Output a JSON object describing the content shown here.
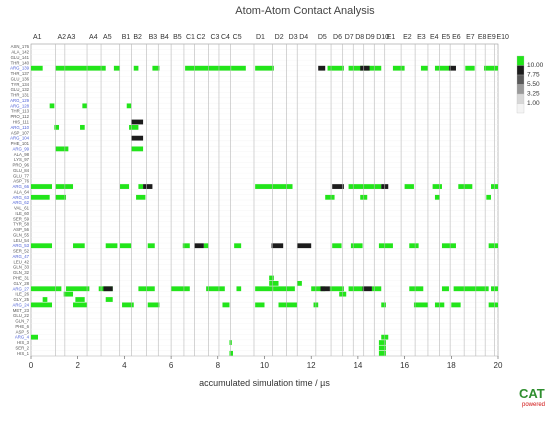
{
  "chart_data": {
    "type": "heatmap",
    "title": "Atom-Atom Contact Analysis",
    "xlabel": "accumulated simulation time / µs",
    "xlim": [
      0,
      20
    ],
    "x_ticks": [
      0,
      2,
      4,
      6,
      8,
      10,
      12,
      14,
      16,
      18,
      20
    ],
    "segments": [
      {
        "label": "A1",
        "start": 0.0
      },
      {
        "label": "A2",
        "start": 1.05
      },
      {
        "label": "A3",
        "start": 1.45
      },
      {
        "label": "A4",
        "start": 2.4
      },
      {
        "label": "A5",
        "start": 3.0
      },
      {
        "label": "B1",
        "start": 3.8
      },
      {
        "label": "B2",
        "start": 4.3
      },
      {
        "label": "B3",
        "start": 4.95
      },
      {
        "label": "B4",
        "start": 5.45
      },
      {
        "label": "B5",
        "start": 6.0
      },
      {
        "label": "C1",
        "start": 6.55
      },
      {
        "label": "C2",
        "start": 7.0
      },
      {
        "label": "C3",
        "start": 7.6
      },
      {
        "label": "C4",
        "start": 8.05
      },
      {
        "label": "C5",
        "start": 8.55
      },
      {
        "label": "D1",
        "start": 9.55
      },
      {
        "label": "D2",
        "start": 10.35
      },
      {
        "label": "D3",
        "start": 10.95
      },
      {
        "label": "D4",
        "start": 11.4
      },
      {
        "label": "D5",
        "start": 12.2
      },
      {
        "label": "D6",
        "start": 12.85
      },
      {
        "label": "D7",
        "start": 13.35
      },
      {
        "label": "D8",
        "start": 13.8
      },
      {
        "label": "D9",
        "start": 14.25
      },
      {
        "label": "D10",
        "start": 14.7
      },
      {
        "label": "E1",
        "start": 15.15
      },
      {
        "label": "E2",
        "start": 15.85
      },
      {
        "label": "E3",
        "start": 16.45
      },
      {
        "label": "E4",
        "start": 17.0
      },
      {
        "label": "E5",
        "start": 17.5
      },
      {
        "label": "E6",
        "start": 17.95
      },
      {
        "label": "E7",
        "start": 18.55
      },
      {
        "label": "E8",
        "start": 19.05
      },
      {
        "label": "E9",
        "start": 19.45
      },
      {
        "label": "E10",
        "start": 19.85
      }
    ],
    "residues": [
      {
        "name": "ASN_176",
        "arg": false
      },
      {
        "name": "ALA_142",
        "arg": false
      },
      {
        "name": "GLU_141",
        "arg": false
      },
      {
        "name": "THR_140",
        "arg": false
      },
      {
        "name": "ARG_139",
        "arg": true
      },
      {
        "name": "THR_137",
        "arg": false
      },
      {
        "name": "GLU_136",
        "arg": false
      },
      {
        "name": "TYR_134",
        "arg": false
      },
      {
        "name": "GLU_132",
        "arg": false
      },
      {
        "name": "THR_131",
        "arg": false
      },
      {
        "name": "ARG_129",
        "arg": true
      },
      {
        "name": "ARG_128",
        "arg": true
      },
      {
        "name": "THR_113",
        "arg": false
      },
      {
        "name": "PRO_112",
        "arg": false
      },
      {
        "name": "HIS_111",
        "arg": false
      },
      {
        "name": "ARG_110",
        "arg": true
      },
      {
        "name": "ASP_107",
        "arg": false
      },
      {
        "name": "ARG_104",
        "arg": true
      },
      {
        "name": "PHE_101",
        "arg": false
      },
      {
        "name": "ARG_99",
        "arg": true
      },
      {
        "name": "ALA_98",
        "arg": false
      },
      {
        "name": "LYS_97",
        "arg": false
      },
      {
        "name": "PRO_96",
        "arg": false
      },
      {
        "name": "GLU_84",
        "arg": false
      },
      {
        "name": "GLU_77",
        "arg": false
      },
      {
        "name": "ASP_76",
        "arg": false
      },
      {
        "name": "ARG_66",
        "arg": true
      },
      {
        "name": "ALA_64",
        "arg": false
      },
      {
        "name": "ARG_63",
        "arg": true
      },
      {
        "name": "ARG_62",
        "arg": true
      },
      {
        "name": "VAL_61",
        "arg": false
      },
      {
        "name": "ILE_60",
        "arg": false
      },
      {
        "name": "SER_59",
        "arg": false
      },
      {
        "name": "TYR_58",
        "arg": false
      },
      {
        "name": "ASP_56",
        "arg": false
      },
      {
        "name": "GLN_55",
        "arg": false
      },
      {
        "name": "LEU_54",
        "arg": false
      },
      {
        "name": "ARG_53",
        "arg": true
      },
      {
        "name": "SER_52",
        "arg": false
      },
      {
        "name": "ARG_47",
        "arg": true
      },
      {
        "name": "LEU_42",
        "arg": false
      },
      {
        "name": "GLN_33",
        "arg": false
      },
      {
        "name": "GLN_32",
        "arg": false
      },
      {
        "name": "PHE_31",
        "arg": false
      },
      {
        "name": "GLY_28",
        "arg": false
      },
      {
        "name": "ARG_27",
        "arg": true
      },
      {
        "name": "ILE_26",
        "arg": false
      },
      {
        "name": "GLY_25",
        "arg": false
      },
      {
        "name": "ARG_24",
        "arg": true
      },
      {
        "name": "MET_23",
        "arg": false
      },
      {
        "name": "GLU_22",
        "arg": false
      },
      {
        "name": "GLN_7",
        "arg": false
      },
      {
        "name": "PHE_6",
        "arg": false
      },
      {
        "name": "ASP_5",
        "arg": false
      },
      {
        "name": "ARG_4",
        "arg": true
      },
      {
        "name": "HIS_3",
        "arg": false
      },
      {
        "name": "SER_2",
        "arg": false
      },
      {
        "name": "HIS_1",
        "arg": false
      }
    ],
    "color_levels": [
      {
        "label": "10.00",
        "color": "#22e51a"
      },
      {
        "label": "7.75",
        "color": "#1c1c1c"
      },
      {
        "label": "5.50",
        "color": "#5a5a5a"
      },
      {
        "label": "3.25",
        "color": "#9a9a9a"
      },
      {
        "label": "1.00",
        "color": "#d8d8d8"
      },
      {
        "label": "",
        "color": "#f4f4f4"
      }
    ],
    "contacts": [
      {
        "residue": "ARG_139",
        "level": "10.00",
        "spans": [
          [
            0.0,
            0.5
          ],
          [
            1.05,
            3.2
          ],
          [
            3.55,
            3.8
          ],
          [
            4.4,
            4.6
          ],
          [
            5.2,
            5.5
          ],
          [
            6.6,
            7.6
          ],
          [
            7.6,
            8.6
          ],
          [
            8.6,
            9.2
          ],
          [
            9.6,
            10.4
          ],
          [
            12.7,
            13.4
          ],
          [
            13.6,
            14.3
          ],
          [
            14.3,
            15.0
          ],
          [
            15.5,
            16.0
          ],
          [
            16.7,
            17.0
          ],
          [
            17.3,
            18.0
          ],
          [
            18.6,
            19.0
          ],
          [
            19.4,
            20.0
          ]
        ]
      },
      {
        "residue": "ARG_139",
        "level": "7.75",
        "spans": [
          [
            12.3,
            12.6
          ],
          [
            14.1,
            14.5
          ],
          [
            17.9,
            18.2
          ]
        ]
      },
      {
        "residue": "ARG_128",
        "level": "10.00",
        "spans": [
          [
            0.8,
            1.0
          ],
          [
            2.2,
            2.4
          ],
          [
            4.1,
            4.3
          ]
        ]
      },
      {
        "residue": "HIS_111",
        "level": "7.75",
        "spans": [
          [
            4.3,
            4.8
          ]
        ]
      },
      {
        "residue": "ARG_110",
        "level": "10.00",
        "spans": [
          [
            1.0,
            1.2
          ],
          [
            2.1,
            2.3
          ],
          [
            4.2,
            4.6
          ]
        ]
      },
      {
        "residue": "ARG_104",
        "level": "7.75",
        "spans": [
          [
            4.3,
            4.8
          ]
        ]
      },
      {
        "residue": "ARG_99",
        "level": "10.00",
        "spans": [
          [
            1.05,
            1.6
          ],
          [
            4.3,
            4.8
          ]
        ]
      },
      {
        "residue": "ARG_66",
        "level": "10.00",
        "spans": [
          [
            0.0,
            0.9
          ],
          [
            1.05,
            1.8
          ],
          [
            3.8,
            4.2
          ],
          [
            4.6,
            4.8
          ],
          [
            9.6,
            11.2
          ],
          [
            13.6,
            15.0
          ],
          [
            16.0,
            16.4
          ],
          [
            17.2,
            17.6
          ],
          [
            18.3,
            18.9
          ],
          [
            19.7,
            20.0
          ]
        ]
      },
      {
        "residue": "ARG_66",
        "level": "7.75",
        "spans": [
          [
            4.8,
            5.2
          ],
          [
            12.9,
            13.4
          ],
          [
            15.0,
            15.3
          ]
        ]
      },
      {
        "residue": "ARG_63",
        "level": "10.00",
        "spans": [
          [
            0.0,
            0.8
          ],
          [
            1.05,
            1.5
          ],
          [
            4.5,
            4.9
          ],
          [
            12.6,
            13.0
          ],
          [
            14.1,
            14.4
          ],
          [
            17.3,
            17.5
          ],
          [
            19.5,
            19.7
          ]
        ]
      },
      {
        "residue": "ARG_53",
        "level": "10.00",
        "spans": [
          [
            0.0,
            0.9
          ],
          [
            1.8,
            2.3
          ],
          [
            3.2,
            3.7
          ],
          [
            3.8,
            4.3
          ],
          [
            5.0,
            5.3
          ],
          [
            6.5,
            6.8
          ],
          [
            7.4,
            7.6
          ],
          [
            8.7,
            9.0
          ],
          [
            12.9,
            13.3
          ],
          [
            13.7,
            14.2
          ],
          [
            14.9,
            15.5
          ],
          [
            16.2,
            16.6
          ],
          [
            17.6,
            18.2
          ],
          [
            19.6,
            20.0
          ]
        ]
      },
      {
        "residue": "ARG_53",
        "level": "7.75",
        "spans": [
          [
            7.0,
            7.4
          ],
          [
            10.3,
            10.8
          ],
          [
            11.4,
            12.0
          ]
        ]
      },
      {
        "residue": "PHE_31",
        "level": "10.00",
        "spans": [
          [
            10.2,
            10.4
          ]
        ]
      },
      {
        "residue": "GLY_28",
        "level": "10.00",
        "spans": [
          [
            10.2,
            10.6
          ],
          [
            11.4,
            11.6
          ]
        ]
      },
      {
        "residue": "ARG_27",
        "level": "10.00",
        "spans": [
          [
            0.0,
            1.3
          ],
          [
            1.5,
            2.5
          ],
          [
            2.9,
            3.5
          ],
          [
            4.6,
            5.3
          ],
          [
            6.0,
            6.8
          ],
          [
            7.5,
            8.3
          ],
          [
            8.8,
            9.0
          ],
          [
            9.6,
            10.4
          ],
          [
            10.4,
            11.3
          ],
          [
            12.0,
            12.6
          ],
          [
            12.8,
            13.4
          ],
          [
            13.6,
            14.2
          ],
          [
            14.6,
            15.0
          ],
          [
            16.2,
            16.8
          ],
          [
            17.6,
            17.9
          ],
          [
            18.1,
            19.6
          ],
          [
            19.7,
            20.0
          ]
        ]
      },
      {
        "residue": "ARG_27",
        "level": "7.75",
        "spans": [
          [
            3.1,
            3.5
          ],
          [
            12.4,
            12.8
          ],
          [
            14.2,
            14.6
          ]
        ]
      },
      {
        "residue": "ILE_26",
        "level": "10.00",
        "spans": [
          [
            1.4,
            1.8
          ],
          [
            13.2,
            13.5
          ]
        ]
      },
      {
        "residue": "GLY_25",
        "level": "10.00",
        "spans": [
          [
            0.5,
            0.7
          ],
          [
            1.9,
            2.3
          ],
          [
            3.2,
            3.5
          ]
        ]
      },
      {
        "residue": "ARG_24",
        "level": "10.00",
        "spans": [
          [
            0.0,
            0.9
          ],
          [
            1.8,
            2.4
          ],
          [
            3.9,
            4.4
          ],
          [
            5.0,
            5.5
          ],
          [
            8.2,
            8.5
          ],
          [
            9.6,
            10.0
          ],
          [
            10.6,
            11.4
          ],
          [
            12.1,
            12.3
          ],
          [
            15.0,
            15.2
          ],
          [
            16.4,
            17.0
          ],
          [
            17.3,
            17.7
          ],
          [
            18.0,
            18.4
          ],
          [
            19.6,
            20.0
          ]
        ]
      },
      {
        "residue": "ARG_4",
        "level": "10.00",
        "spans": [
          [
            0.0,
            0.3
          ],
          [
            15.0,
            15.3
          ]
        ]
      },
      {
        "residue": "HIS_3",
        "level": "10.00",
        "spans": [
          [
            8.5,
            8.6
          ],
          [
            14.9,
            15.2
          ]
        ]
      },
      {
        "residue": "SER_2",
        "level": "10.00",
        "spans": [
          [
            14.9,
            15.2
          ]
        ]
      },
      {
        "residue": "HIS_1",
        "level": "10.00",
        "spans": [
          [
            8.5,
            8.65
          ],
          [
            14.9,
            15.2
          ]
        ]
      }
    ]
  },
  "logo": {
    "main": "CAT",
    "sub": "powered"
  }
}
